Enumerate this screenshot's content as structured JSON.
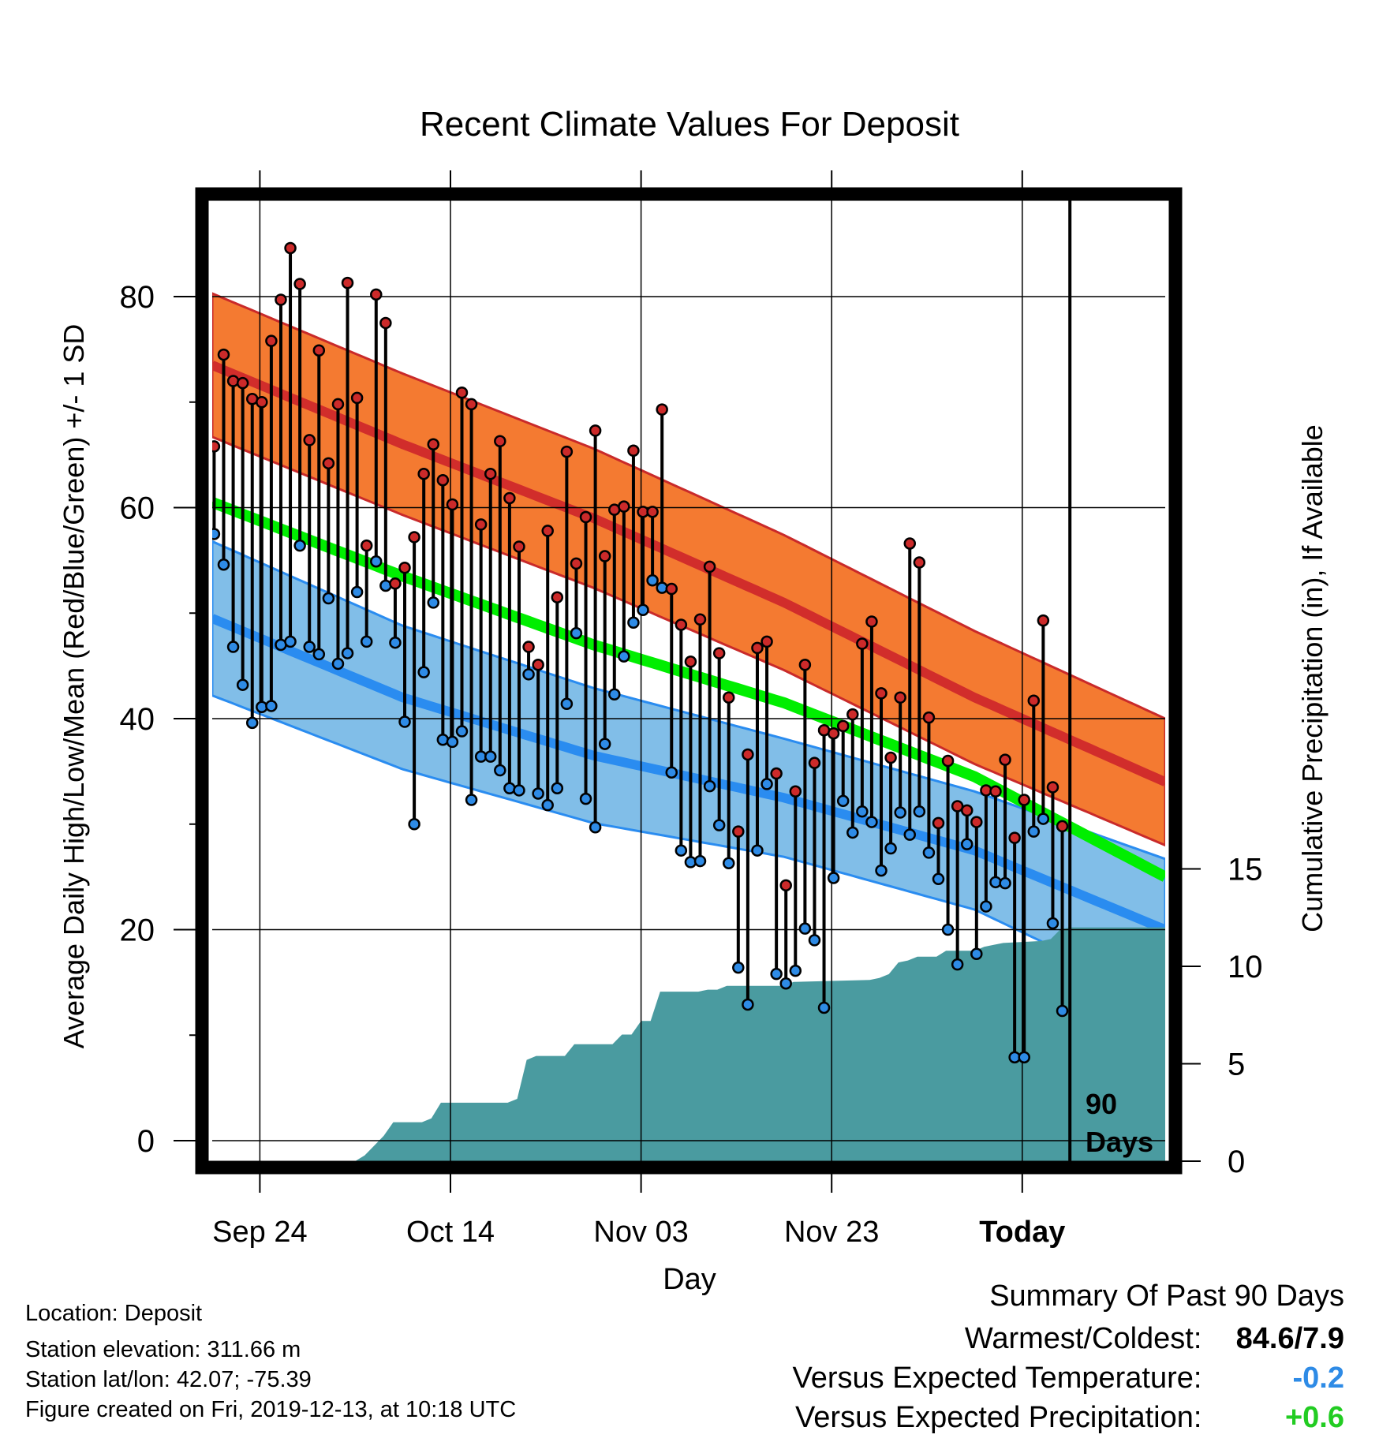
{
  "chart_data": {
    "type": "line",
    "title": "Recent Climate Values For Deposit",
    "xlabel": "Day",
    "ylabel": "Average Daily High/Low/Mean (Red/Blue/Green) +/- 1 SD",
    "y2label": "Cumulative Precipitation (in), If Available",
    "x_ticks": [
      "Sep 24",
      "Oct 14",
      "Nov 03",
      "Nov 23",
      "Today"
    ],
    "y_ticks": [
      "0",
      "20",
      "40",
      "60",
      "80"
    ],
    "y2_ticks": [
      "0",
      "5",
      "10",
      "15"
    ],
    "ylim": [
      -1.5,
      90
    ],
    "y2lim": [
      0,
      50
    ],
    "days_shown": 100,
    "today_day": 90,
    "today_label_line1": "90",
    "today_label_line2": "Days",
    "normals": {
      "days": [
        0,
        20,
        40,
        60,
        80,
        100
      ],
      "high_mean": [
        73.5,
        66,
        59,
        51,
        42,
        34
      ],
      "high_sd": [
        6.8,
        6.7,
        6.6,
        6.4,
        6.3,
        6.0
      ],
      "low_mean": [
        49.5,
        42,
        36.5,
        32.5,
        27.5,
        20
      ],
      "low_sd": [
        7.3,
        6.8,
        6.4,
        5.6,
        5.6,
        6.7
      ],
      "mean_mean": [
        60.5,
        53.5,
        47,
        41.5,
        34.5,
        25
      ]
    },
    "highs": [
      65.8,
      74.5,
      72,
      71.8,
      70.3,
      70,
      75.8,
      79.7,
      84.6,
      81.2,
      66.4,
      74.9,
      64.2,
      69.8,
      81.3,
      70.4,
      56.4,
      80.2,
      77.5,
      52.8,
      54.3,
      57.2,
      63.2,
      66,
      62.6,
      60.3,
      70.9,
      69.8,
      58.4,
      63.2,
      66.3,
      60.9,
      56.3,
      46.8,
      45.1,
      57.8,
      51.5,
      65.3,
      54.7,
      59.1,
      67.3,
      55.4,
      59.8,
      60.1,
      65.4,
      59.6,
      59.6,
      69.3,
      52.3,
      48.9,
      45.4,
      49.4,
      54.4,
      46.2,
      42,
      29.3,
      36.6,
      46.7,
      47.3,
      34.8,
      24.2,
      33.1,
      45.1,
      35.8,
      38.9,
      38.6,
      39.3,
      40.4,
      47.1,
      49.2,
      42.4,
      36.3,
      42,
      56.6,
      54.8,
      40.1,
      30.1,
      36,
      31.7,
      31.3,
      30.2,
      33.2,
      33.1,
      36.1,
      28.7,
      32.3,
      41.7,
      49.3,
      33.5,
      29.8
    ],
    "lows": [
      57.5,
      54.6,
      46.8,
      43.2,
      39.6,
      41.1,
      41.2,
      47,
      47.3,
      56.4,
      46.8,
      46.1,
      51.4,
      45.2,
      46.2,
      52,
      47.3,
      54.9,
      52.6,
      47.2,
      39.7,
      30,
      44.4,
      51,
      38,
      37.8,
      38.8,
      32.3,
      36.4,
      36.4,
      35.1,
      33.4,
      33.2,
      44.2,
      32.9,
      31.8,
      33.4,
      41.4,
      48.1,
      32.4,
      29.7,
      37.6,
      42.3,
      45.9,
      49.1,
      50.3,
      53.1,
      52.4,
      34.9,
      27.5,
      26.4,
      26.5,
      33.6,
      29.9,
      26.3,
      16.4,
      12.9,
      27.5,
      33.8,
      15.8,
      14.9,
      16.1,
      20.1,
      19,
      12.6,
      24.9,
      32.2,
      29.2,
      31.2,
      30.2,
      25.6,
      27.7,
      31.1,
      29,
      31.2,
      27.3,
      24.8,
      20,
      16.7,
      28.1,
      17.7,
      22.2,
      24.5,
      24.4,
      7.9,
      7.9,
      29.3,
      30.5,
      20.6,
      12.3
    ],
    "precip_cumulative": [
      [
        0,
        0
      ],
      [
        15,
        0
      ],
      [
        16,
        0.3
      ],
      [
        17,
        0.8
      ],
      [
        18,
        1.3
      ],
      [
        19,
        2
      ],
      [
        22,
        2
      ],
      [
        23,
        2.2
      ],
      [
        24,
        3
      ],
      [
        31,
        3
      ],
      [
        32,
        3.2
      ],
      [
        33,
        5.2
      ],
      [
        34,
        5.4
      ],
      [
        37,
        5.4
      ],
      [
        38,
        6
      ],
      [
        42,
        6
      ],
      [
        43,
        6.5
      ],
      [
        44,
        6.5
      ],
      [
        45,
        7.2
      ],
      [
        46,
        7.2
      ],
      [
        47,
        8.7
      ],
      [
        51,
        8.7
      ],
      [
        52,
        8.8
      ],
      [
        53,
        8.8
      ],
      [
        54,
        9
      ],
      [
        60,
        9
      ],
      [
        61,
        9.2
      ],
      [
        69,
        9.3
      ],
      [
        70,
        9.4
      ],
      [
        71,
        9.6
      ],
      [
        72,
        10.2
      ],
      [
        73,
        10.3
      ],
      [
        74,
        10.5
      ],
      [
        76,
        10.5
      ],
      [
        77,
        10.8
      ],
      [
        80,
        10.8
      ],
      [
        81,
        11
      ],
      [
        82,
        11.1
      ],
      [
        83,
        11.2
      ],
      [
        87,
        11.3
      ],
      [
        88,
        11.4
      ],
      [
        89,
        11.9
      ],
      [
        90,
        12
      ],
      [
        100,
        12
      ]
    ],
    "grid": true
  },
  "colors": {
    "high_band": "#F47A31",
    "high_line": "#D12D2B",
    "high_edge": "#C92A2A",
    "low_band": "#81BEE8",
    "low_line": "#2A8CF0",
    "mean_band": "#00EE00",
    "overlap": "#9A1719",
    "precip": "#4A9BA0",
    "point_high": "#CC2A2A",
    "point_low": "#2E8BE6",
    "vs_temp": "#2E8BE6",
    "vs_precip": "#22CC22"
  },
  "info": {
    "location": "Location: Deposit",
    "elevation": "Station elevation: 311.66 m",
    "latlon": "Station lat/lon: 42.07; -75.39",
    "created": "Figure created on Fri, 2019-12-13, at 10:18 UTC"
  },
  "summary": {
    "title": "Summary Of Past 90 Days",
    "warmest_label": "Warmest/Coldest:",
    "warmest_value": "84.6/7.9",
    "temp_label": "Versus Expected Temperature:",
    "temp_value": "-0.2",
    "precip_label": "Versus Expected Precipitation:",
    "precip_value": "+0.6"
  }
}
